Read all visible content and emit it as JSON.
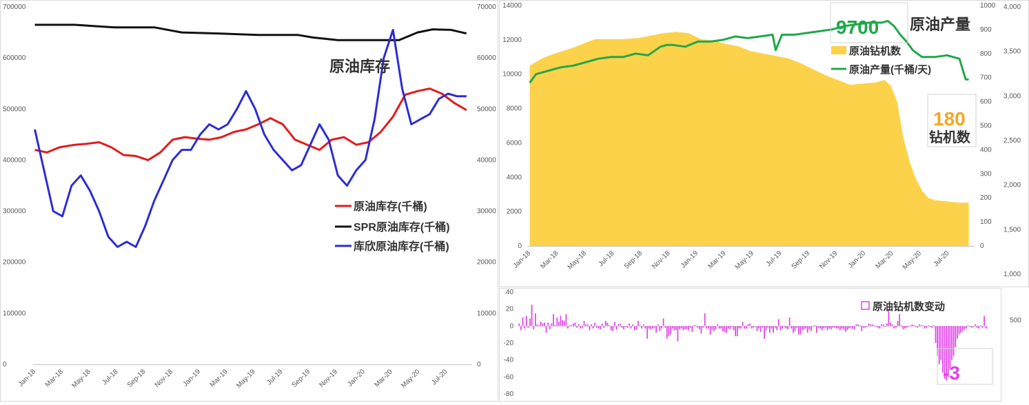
{
  "chart_data": [
    {
      "type": "line",
      "title": "原油库存",
      "x_ticks": [
        "Jan-18",
        "Mar-18",
        "May-18",
        "Jul-18",
        "Sep-18",
        "Nov-18",
        "Jan-19",
        "Mar-19",
        "May-19",
        "Jul-19",
        "Sep-19",
        "Nov-19",
        "Jan-20",
        "Mar-20",
        "May-20",
        "Jul-20"
      ],
      "left_ticks": [
        "0",
        "100000",
        "200000",
        "300000",
        "400000",
        "500000",
        "600000",
        "700000"
      ],
      "right_ticks": [
        "0",
        "10000",
        "20000",
        "30000",
        "40000",
        "50000",
        "60000",
        "70000"
      ],
      "ylim_left": [
        0,
        700000
      ],
      "ylim_right": [
        0,
        70000
      ],
      "grid": false,
      "legend_position": "bottom-right",
      "series": [
        {
          "name": "原油库存(千桶)",
          "axis": "left",
          "color": "#e41a1c",
          "x": [
            "2018-01-05",
            "2018-02-02",
            "2018-03-02",
            "2018-04-06",
            "2018-05-04",
            "2018-06-01",
            "2018-06-29",
            "2018-07-27",
            "2018-08-24",
            "2018-09-21",
            "2018-10-19",
            "2018-11-16",
            "2018-12-14",
            "2019-01-11",
            "2019-02-08",
            "2019-03-08",
            "2019-04-05",
            "2019-05-03",
            "2019-05-31",
            "2019-06-28",
            "2019-07-26",
            "2019-08-23",
            "2019-09-20",
            "2019-10-18",
            "2019-11-15",
            "2019-12-13",
            "2020-01-10",
            "2020-02-07",
            "2020-03-06",
            "2020-04-03",
            "2020-05-01",
            "2020-05-29",
            "2020-06-26",
            "2020-07-24",
            "2020-08-21",
            "2020-09-18"
          ],
          "y": [
            420000,
            415000,
            425000,
            430000,
            432000,
            435000,
            425000,
            410000,
            408000,
            400000,
            415000,
            440000,
            445000,
            442000,
            440000,
            445000,
            455000,
            460000,
            470000,
            482000,
            470000,
            440000,
            430000,
            420000,
            440000,
            445000,
            430000,
            435000,
            455000,
            485000,
            528000,
            535000,
            540000,
            530000,
            512000,
            498000
          ]
        },
        {
          "name": "SPR原油库存(千桶)",
          "axis": "left",
          "color": "#111111",
          "x": [
            "2018-01-05",
            "2018-04-06",
            "2018-07-06",
            "2018-10-05",
            "2018-12-07",
            "2019-03-01",
            "2019-05-31",
            "2019-08-30",
            "2019-10-04",
            "2019-11-29",
            "2020-02-28",
            "2020-04-17",
            "2020-05-29",
            "2020-07-03",
            "2020-08-14",
            "2020-09-18"
          ],
          "y": [
            665000,
            665000,
            660000,
            660000,
            650000,
            648000,
            645000,
            645000,
            640000,
            635000,
            635000,
            635000,
            650000,
            656000,
            655000,
            648000
          ]
        },
        {
          "name": "库欣原油库存(千桶)",
          "axis": "right",
          "color": "#2c2cd6",
          "x": [
            "2018-01-05",
            "2018-01-26",
            "2018-02-16",
            "2018-03-09",
            "2018-03-30",
            "2018-04-20",
            "2018-05-11",
            "2018-06-01",
            "2018-06-22",
            "2018-07-13",
            "2018-08-03",
            "2018-08-24",
            "2018-09-14",
            "2018-10-05",
            "2018-10-26",
            "2018-11-16",
            "2018-12-07",
            "2018-12-28",
            "2019-01-18",
            "2019-02-08",
            "2019-03-01",
            "2019-03-22",
            "2019-04-12",
            "2019-05-03",
            "2019-05-24",
            "2019-06-14",
            "2019-07-05",
            "2019-07-26",
            "2019-08-16",
            "2019-09-06",
            "2019-09-27",
            "2019-10-18",
            "2019-11-08",
            "2019-11-29",
            "2019-12-20",
            "2020-01-10",
            "2020-01-31",
            "2020-02-21",
            "2020-03-13",
            "2020-04-03",
            "2020-04-24",
            "2020-05-15",
            "2020-06-05",
            "2020-06-26",
            "2020-07-17",
            "2020-08-07",
            "2020-08-28",
            "2020-09-18"
          ],
          "y": [
            46000,
            38000,
            30000,
            29000,
            35000,
            37000,
            34000,
            30000,
            25000,
            23000,
            24000,
            23000,
            27000,
            32000,
            36000,
            40000,
            42000,
            42000,
            45000,
            47000,
            46000,
            47000,
            50000,
            53500,
            50000,
            45000,
            42000,
            40000,
            38000,
            39000,
            43000,
            47000,
            44000,
            37000,
            35000,
            38000,
            40000,
            48000,
            60000,
            65500,
            54000,
            47000,
            48000,
            49000,
            52000,
            53000,
            52500,
            52500
          ]
        }
      ]
    },
    {
      "type": "area",
      "title": "原油产量",
      "annotation_production": "9700",
      "annotation_rigs_value": "180",
      "annotation_rigs_label": "钻机数",
      "x_ticks": [
        "Jan-18",
        "Mar-18",
        "May-18",
        "Jul-18",
        "Sep-18",
        "Nov-18",
        "Jan-19",
        "Mar-19",
        "May-19",
        "Jul-19",
        "Sep-19",
        "Nov-19",
        "Jan-20",
        "Mar-20",
        "May-20",
        "Jul-20"
      ],
      "left_ticks": [
        "0",
        "2000",
        "4000",
        "6000",
        "8000",
        "10000",
        "12000",
        "14000"
      ],
      "mid_ticks": [
        "0",
        "100",
        "200",
        "300",
        "400",
        "500",
        "600",
        "700",
        "800",
        "900",
        "1000"
      ],
      "right_ticks": [
        "1,000",
        "1,500",
        "2,000",
        "2,500",
        "3,000",
        "3,500",
        "4,000"
      ],
      "ylim_left": [
        0,
        14000
      ],
      "ylim_mid": [
        0,
        1000
      ],
      "legend_position": "top-right",
      "series": [
        {
          "name": "原油钻机数",
          "axis": "mid",
          "color": "#fcd24a",
          "x": [
            "2018-01-05",
            "2018-02-02",
            "2018-03-02",
            "2018-04-06",
            "2018-05-04",
            "2018-06-01",
            "2018-07-06",
            "2018-08-03",
            "2018-09-07",
            "2018-10-05",
            "2018-11-02",
            "2018-11-30",
            "2018-12-28",
            "2019-01-25",
            "2019-02-22",
            "2019-03-22",
            "2019-04-19",
            "2019-05-17",
            "2019-06-14",
            "2019-07-12",
            "2019-08-09",
            "2019-09-06",
            "2019-10-04",
            "2019-11-01",
            "2019-11-29",
            "2019-12-27",
            "2020-01-24",
            "2020-02-21",
            "2020-03-13",
            "2020-03-27",
            "2020-04-10",
            "2020-04-24",
            "2020-05-08",
            "2020-05-22",
            "2020-06-05",
            "2020-06-19",
            "2020-07-03",
            "2020-07-31",
            "2020-08-28",
            "2020-09-18"
          ],
          "y": [
            750,
            780,
            800,
            820,
            840,
            860,
            860,
            860,
            865,
            875,
            885,
            890,
            885,
            860,
            855,
            840,
            830,
            810,
            800,
            790,
            780,
            760,
            735,
            710,
            690,
            670,
            675,
            680,
            690,
            665,
            600,
            450,
            350,
            280,
            230,
            200,
            190,
            185,
            180,
            180
          ]
        },
        {
          "name": "原油产量(千桶/天)",
          "axis": "left",
          "color": "#1fa84a",
          "x": [
            "2018-01-05",
            "2018-01-19",
            "2018-02-16",
            "2018-03-16",
            "2018-04-13",
            "2018-05-11",
            "2018-06-08",
            "2018-07-06",
            "2018-08-03",
            "2018-08-31",
            "2018-09-28",
            "2018-10-26",
            "2018-11-09",
            "2018-11-23",
            "2018-12-21",
            "2019-01-18",
            "2019-02-15",
            "2019-03-15",
            "2019-04-12",
            "2019-05-10",
            "2019-06-07",
            "2019-07-05",
            "2019-07-12",
            "2019-07-26",
            "2019-08-23",
            "2019-09-20",
            "2019-10-18",
            "2019-11-15",
            "2019-12-13",
            "2020-01-10",
            "2020-02-07",
            "2020-03-06",
            "2020-03-20",
            "2020-04-03",
            "2020-04-17",
            "2020-05-01",
            "2020-05-15",
            "2020-06-05",
            "2020-07-03",
            "2020-07-31",
            "2020-08-28",
            "2020-09-11",
            "2020-09-18"
          ],
          "y": [
            9500,
            10000,
            10200,
            10400,
            10500,
            10700,
            10900,
            11000,
            11000,
            11200,
            11100,
            11600,
            11700,
            11700,
            11600,
            11900,
            11900,
            12000,
            12200,
            12100,
            12200,
            12300,
            11400,
            12300,
            12300,
            12400,
            12500,
            12600,
            12800,
            12900,
            13000,
            13000,
            13100,
            12800,
            12300,
            11900,
            11400,
            11000,
            11000,
            11100,
            10900,
            9700,
            9700
          ]
        }
      ]
    },
    {
      "type": "bar",
      "title": "原油钻机数变动",
      "annotation_value": "-3",
      "y_ticks": [
        "40",
        "20",
        "0",
        "-20",
        "-40",
        "-60",
        "-80"
      ],
      "right_tick": "500",
      "ylim": [
        -80,
        40
      ],
      "color": "#e040e8",
      "values": [
        3,
        -5,
        10,
        -3,
        12,
        -2,
        9,
        25,
        -4,
        15,
        2,
        1,
        5,
        3,
        4,
        -8,
        4,
        -4,
        3,
        14,
        1,
        10,
        5,
        12,
        7,
        6,
        14,
        -3,
        1,
        1,
        3,
        4,
        -2,
        2,
        -3,
        -2,
        6,
        2,
        2,
        -5,
        2,
        -3,
        4,
        -2,
        -3,
        -4,
        3,
        -2,
        6,
        4,
        1,
        -5,
        -6,
        5,
        -4,
        2,
        3,
        -2,
        -4,
        -1,
        -2,
        3,
        -3,
        2,
        -5,
        -4,
        6,
        1,
        -3,
        2,
        -3,
        -15,
        -3,
        -4,
        -3,
        -2,
        -8,
        2,
        -6,
        -3,
        9,
        -2,
        -15,
        -12,
        -10,
        -3,
        -5,
        -5,
        -18,
        -4,
        -3,
        -5,
        -4,
        -4,
        -5,
        -2,
        -7,
        1,
        1,
        -2,
        -4,
        -9,
        -2,
        15,
        -3,
        -3,
        -10,
        -4,
        -6,
        -4,
        2,
        -3,
        -3,
        -6,
        -7,
        -8,
        -3,
        -4,
        -1,
        -5,
        -12,
        -12,
        -3,
        -3,
        5,
        -3,
        -3,
        2,
        3,
        -3,
        -2,
        -1,
        -6,
        -3,
        -7,
        -2,
        -15,
        -5,
        -2,
        -8,
        -3,
        -8,
        -2,
        -5,
        8,
        -5,
        -3,
        -1,
        -3,
        -4,
        10,
        -3,
        -8,
        -6,
        -2,
        -10,
        -10,
        -5,
        -4,
        -3,
        -8,
        -4,
        -6,
        0,
        1,
        -8,
        -2,
        -3,
        -5,
        -3,
        -2,
        -5,
        -3,
        -4,
        -2,
        -2,
        -3,
        -3,
        -5,
        -3,
        -4,
        -7,
        -5,
        -3,
        -2,
        -3,
        -4,
        2,
        2,
        1,
        -6,
        -2,
        -2,
        -1,
        3,
        2,
        2,
        1,
        -1,
        -2,
        -3,
        2,
        2,
        -1,
        3,
        20,
        4,
        2,
        -3,
        -2,
        6,
        14,
        1,
        -4,
        -3,
        -2,
        -1,
        1,
        2,
        1,
        -1,
        -2,
        2,
        1,
        1,
        -3,
        -2,
        1,
        -1,
        -2,
        1,
        -20,
        -35,
        -45,
        -40,
        -55,
        -62,
        -64,
        -60,
        -50,
        -40,
        -35,
        -25,
        -15,
        -10,
        -8,
        -6,
        -4,
        -3,
        1,
        -1,
        -2,
        -1,
        2,
        -2,
        -3,
        1,
        -2,
        12,
        -3
      ]
    }
  ]
}
